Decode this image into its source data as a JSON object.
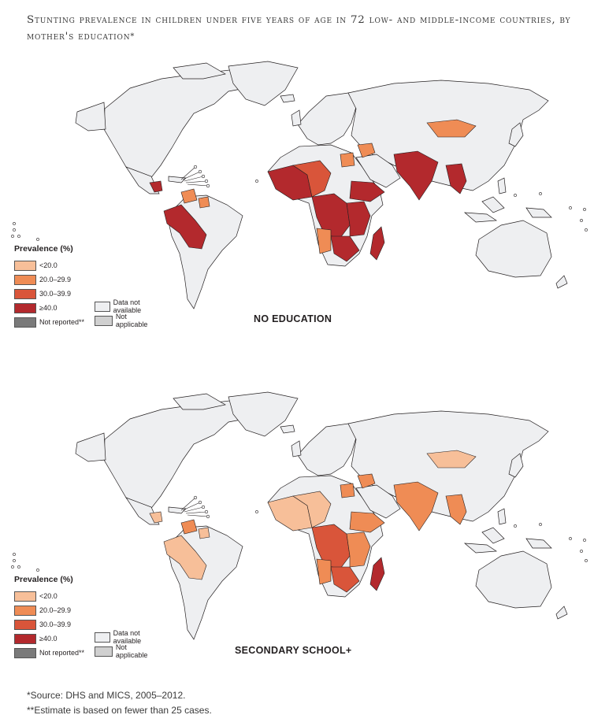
{
  "title": {
    "text": "Stunting prevalence in children under five years of age in 72 low- and middle-income countries, by mother's education",
    "marker": "*"
  },
  "colors": {
    "lt20": "#f7bf99",
    "r20_29": "#ef8c55",
    "r30_39": "#d9553a",
    "ge40": "#b3292d",
    "not_reported": "#7a7a7a",
    "not_available": "#eeeff1",
    "not_applicable": "#d0d0d0",
    "border": "#231f20"
  },
  "legend": {
    "title": "Prevalence (%)",
    "items": [
      {
        "label": "<20.0",
        "color_key": "lt20"
      },
      {
        "label": "20.0–29.9",
        "color_key": "r20_29"
      },
      {
        "label": "30.0–39.9",
        "color_key": "r30_39"
      },
      {
        "label": "≥40.0",
        "color_key": "ge40"
      },
      {
        "label": "Not reported**",
        "color_key": "not_reported"
      }
    ],
    "items_col2": [
      {
        "label": "Data not available",
        "color_key": "not_available"
      },
      {
        "label": "Not applicable",
        "color_key": "not_applicable"
      }
    ]
  },
  "maps": [
    {
      "label": "NO EDUCATION",
      "regions": {
        "west_africa": "ge40",
        "sahel": "r30_39",
        "central_africa": "ge40",
        "east_africa": "ge40",
        "horn_africa": "ge40",
        "southern_africa": "ge40",
        "southwest_africa": "r20_29",
        "egypt": "r20_29",
        "madagascar": "ge40",
        "middle_east": "r20_29",
        "south_asia": "ge40",
        "southeast_asia": "ge40",
        "mongolia": "r20_29",
        "andes": "ge40",
        "central_america": "ge40",
        "caribbean_south": "r20_29",
        "guyana": "r20_29"
      }
    },
    {
      "label": "SECONDARY SCHOOL+",
      "regions": {
        "west_africa": "lt20",
        "sahel": "lt20",
        "central_africa": "r30_39",
        "east_africa": "r20_29",
        "horn_africa": "r20_29",
        "southern_africa": "r30_39",
        "southwest_africa": "r20_29",
        "egypt": "r20_29",
        "madagascar": "ge40",
        "middle_east": "r20_29",
        "south_asia": "r20_29",
        "southeast_asia": "r20_29",
        "mongolia": "lt20",
        "andes": "lt20",
        "central_america": "lt20",
        "caribbean_south": "r20_29",
        "guyana": "lt20"
      }
    }
  ],
  "notes": {
    "source": "*Source: DHS and MICS, 2005–2012.",
    "estimate": "**Estimate is based on fewer than 25 cases."
  }
}
